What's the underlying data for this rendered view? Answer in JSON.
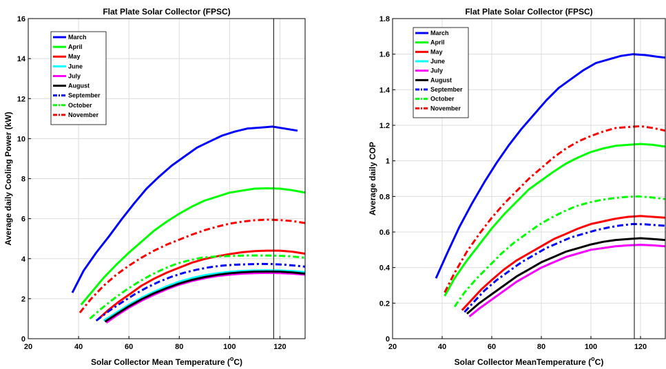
{
  "chart_data": [
    {
      "type": "line",
      "title": "Flat Plate Solar Collector (FPSC)",
      "xlabel": "Solar Collector Mean Temperature (",
      "xlabel_unit": "o",
      "xlabel_end": "C)",
      "ylabel": "Average daily Cooling Power (kW)",
      "xlim": [
        20,
        130
      ],
      "ylim": [
        0,
        16
      ],
      "xticks": [
        20,
        40,
        60,
        80,
        100,
        120
      ],
      "yticks": [
        0,
        2,
        4,
        6,
        8,
        10,
        12,
        14,
        16
      ],
      "grid": true,
      "vline_x": 117.5,
      "legend_position": "top-left",
      "series": [
        {
          "name": "March",
          "color": "#0000ff",
          "style": "solid",
          "x": [
            37.5,
            42,
            47,
            52,
            57,
            62,
            67,
            72,
            77,
            82,
            87,
            92,
            97,
            102,
            107,
            112,
            117,
            122,
            127
          ],
          "y": [
            2.3,
            3.4,
            4.3,
            5.1,
            5.95,
            6.75,
            7.5,
            8.1,
            8.65,
            9.1,
            9.55,
            9.85,
            10.15,
            10.35,
            10.5,
            10.55,
            10.6,
            10.5,
            10.4
          ]
        },
        {
          "name": "April",
          "color": "#00ff00",
          "style": "solid",
          "x": [
            41,
            45,
            50,
            55,
            60,
            65,
            70,
            75,
            80,
            85,
            90,
            95,
            100,
            105,
            110,
            115,
            120,
            125,
            130
          ],
          "y": [
            1.7,
            2.3,
            3.05,
            3.7,
            4.3,
            4.85,
            5.4,
            5.85,
            6.25,
            6.6,
            6.9,
            7.1,
            7.3,
            7.4,
            7.5,
            7.52,
            7.5,
            7.42,
            7.3
          ]
        },
        {
          "name": "May",
          "color": "#ff0000",
          "style": "solid",
          "x": [
            48,
            52,
            56,
            60,
            65,
            70,
            75,
            80,
            85,
            90,
            95,
            100,
            105,
            110,
            115,
            120,
            125,
            130
          ],
          "y": [
            1.0,
            1.45,
            1.85,
            2.2,
            2.65,
            3.0,
            3.3,
            3.55,
            3.8,
            3.98,
            4.12,
            4.23,
            4.32,
            4.38,
            4.4,
            4.4,
            4.35,
            4.25
          ]
        },
        {
          "name": "June",
          "color": "#00ffff",
          "style": "solid",
          "x": [
            50,
            55,
            60,
            65,
            70,
            75,
            80,
            85,
            90,
            95,
            100,
            105,
            110,
            115,
            120,
            125,
            130
          ],
          "y": [
            0.9,
            1.3,
            1.7,
            2.05,
            2.35,
            2.62,
            2.85,
            3.03,
            3.17,
            3.27,
            3.34,
            3.39,
            3.41,
            3.42,
            3.41,
            3.38,
            3.33
          ]
        },
        {
          "name": "July",
          "color": "#ff00ff",
          "style": "solid",
          "x": [
            51,
            55,
            60,
            65,
            70,
            75,
            80,
            85,
            90,
            95,
            100,
            105,
            110,
            115,
            120,
            125,
            130
          ],
          "y": [
            0.8,
            1.15,
            1.55,
            1.9,
            2.2,
            2.47,
            2.7,
            2.88,
            3.02,
            3.13,
            3.2,
            3.25,
            3.28,
            3.29,
            3.28,
            3.25,
            3.2
          ]
        },
        {
          "name": "August",
          "color": "#000000",
          "style": "solid",
          "x": [
            50.5,
            55,
            60,
            65,
            70,
            75,
            80,
            85,
            90,
            95,
            100,
            105,
            110,
            115,
            120,
            125,
            130
          ],
          "y": [
            0.85,
            1.22,
            1.62,
            1.97,
            2.27,
            2.53,
            2.76,
            2.94,
            3.08,
            3.19,
            3.27,
            3.32,
            3.35,
            3.36,
            3.35,
            3.31,
            3.25
          ]
        },
        {
          "name": "September",
          "color": "#0000ff",
          "style": "dashdot",
          "x": [
            47,
            52,
            57,
            62,
            67,
            72,
            77,
            82,
            87,
            92,
            97,
            102,
            107,
            112,
            117,
            122,
            127,
            130
          ],
          "y": [
            0.9,
            1.38,
            1.8,
            2.2,
            2.55,
            2.85,
            3.1,
            3.3,
            3.45,
            3.57,
            3.65,
            3.7,
            3.72,
            3.74,
            3.73,
            3.7,
            3.64,
            3.6
          ]
        },
        {
          "name": "October",
          "color": "#00ff00",
          "style": "dashdot",
          "x": [
            44.5,
            49,
            54,
            59,
            64,
            69,
            74,
            79,
            84,
            89,
            94,
            99,
            104,
            109,
            114,
            119,
            124,
            129,
            130
          ],
          "y": [
            1.0,
            1.5,
            2.0,
            2.45,
            2.85,
            3.2,
            3.5,
            3.75,
            3.92,
            4.05,
            4.1,
            4.13,
            4.15,
            4.16,
            4.16,
            4.15,
            4.12,
            4.06,
            4.05
          ]
        },
        {
          "name": "November",
          "color": "#ff0000",
          "style": "dashdot",
          "x": [
            40.5,
            45,
            50,
            55,
            60,
            65,
            70,
            75,
            80,
            85,
            90,
            95,
            100,
            105,
            110,
            115,
            120,
            125,
            130
          ],
          "y": [
            1.3,
            2.0,
            2.65,
            3.2,
            3.65,
            4.05,
            4.4,
            4.7,
            4.95,
            5.2,
            5.42,
            5.6,
            5.75,
            5.85,
            5.92,
            5.95,
            5.93,
            5.88,
            5.78
          ]
        }
      ]
    },
    {
      "type": "line",
      "title": "Flat Plate Solar Collector (FPSC)",
      "xlabel": "Solar Collector MeanTemperature (",
      "xlabel_unit": "o",
      "xlabel_end": "C)",
      "ylabel": "Average daily COP",
      "xlim": [
        20,
        130
      ],
      "ylim": [
        0,
        1.8
      ],
      "xticks": [
        20,
        40,
        60,
        80,
        100,
        120
      ],
      "yticks": [
        0,
        0.2,
        0.4,
        0.6,
        0.8,
        1,
        1.2,
        1.4,
        1.6,
        1.8
      ],
      "grid": true,
      "vline_x": 117.5,
      "legend_position": "top-left",
      "series": [
        {
          "name": "March",
          "color": "#0000ff",
          "style": "solid",
          "x": [
            37.5,
            42,
            47,
            52,
            57,
            62,
            67,
            72,
            77,
            82,
            87,
            92,
            97,
            102,
            107,
            112,
            117,
            122,
            127,
            130
          ],
          "y": [
            0.34,
            0.48,
            0.63,
            0.76,
            0.88,
            0.99,
            1.09,
            1.18,
            1.26,
            1.34,
            1.41,
            1.46,
            1.51,
            1.55,
            1.57,
            1.59,
            1.6,
            1.595,
            1.585,
            1.58
          ]
        },
        {
          "name": "April",
          "color": "#00ff00",
          "style": "solid",
          "x": [
            41,
            45,
            50,
            55,
            60,
            65,
            70,
            75,
            80,
            85,
            90,
            95,
            100,
            105,
            110,
            115,
            120,
            125,
            130
          ],
          "y": [
            0.24,
            0.34,
            0.44,
            0.53,
            0.62,
            0.7,
            0.77,
            0.84,
            0.89,
            0.94,
            0.985,
            1.02,
            1.05,
            1.07,
            1.085,
            1.09,
            1.095,
            1.09,
            1.08
          ]
        },
        {
          "name": "May",
          "color": "#ff0000",
          "style": "solid",
          "x": [
            48,
            52,
            56,
            60,
            65,
            70,
            75,
            80,
            85,
            90,
            95,
            100,
            105,
            110,
            115,
            120,
            125,
            130
          ],
          "y": [
            0.16,
            0.22,
            0.28,
            0.33,
            0.39,
            0.44,
            0.48,
            0.52,
            0.56,
            0.59,
            0.62,
            0.645,
            0.66,
            0.675,
            0.685,
            0.69,
            0.685,
            0.68
          ]
        },
        {
          "name": "June",
          "color": "#00ffff",
          "style": "solid",
          "x": [
            51,
            55,
            60,
            65,
            70,
            75,
            80,
            85,
            90,
            95,
            100,
            105,
            110,
            115,
            120,
            125,
            130
          ],
          "y": [
            0.125,
            0.17,
            0.22,
            0.27,
            0.32,
            0.36,
            0.4,
            0.43,
            0.46,
            0.48,
            0.5,
            0.51,
            0.52,
            0.525,
            0.528,
            0.525,
            0.52
          ]
        },
        {
          "name": "July",
          "color": "#ff00ff",
          "style": "solid",
          "x": [
            51,
            55,
            60,
            65,
            70,
            75,
            80,
            85,
            90,
            95,
            100,
            105,
            110,
            115,
            120,
            125,
            130
          ],
          "y": [
            0.125,
            0.17,
            0.22,
            0.27,
            0.32,
            0.36,
            0.4,
            0.43,
            0.46,
            0.48,
            0.5,
            0.51,
            0.52,
            0.525,
            0.528,
            0.525,
            0.52
          ]
        },
        {
          "name": "August",
          "color": "#000000",
          "style": "solid",
          "x": [
            50,
            55,
            60,
            65,
            70,
            75,
            80,
            85,
            90,
            95,
            100,
            105,
            110,
            115,
            120,
            125,
            130
          ],
          "y": [
            0.14,
            0.2,
            0.25,
            0.3,
            0.35,
            0.39,
            0.43,
            0.46,
            0.49,
            0.51,
            0.53,
            0.545,
            0.555,
            0.56,
            0.565,
            0.56,
            0.555
          ]
        },
        {
          "name": "September",
          "color": "#0000ff",
          "style": "dashdot",
          "x": [
            49,
            53,
            57,
            62,
            67,
            72,
            77,
            82,
            87,
            92,
            97,
            102,
            107,
            112,
            117,
            122,
            127,
            130
          ],
          "y": [
            0.15,
            0.21,
            0.27,
            0.33,
            0.38,
            0.43,
            0.47,
            0.51,
            0.54,
            0.57,
            0.59,
            0.61,
            0.625,
            0.637,
            0.645,
            0.643,
            0.638,
            0.635
          ]
        },
        {
          "name": "October",
          "color": "#00ff00",
          "style": "dashdot",
          "x": [
            45,
            49,
            54,
            59,
            64,
            69,
            74,
            79,
            84,
            89,
            94,
            99,
            104,
            109,
            114,
            119,
            124,
            129,
            130
          ],
          "y": [
            0.18,
            0.26,
            0.34,
            0.41,
            0.48,
            0.54,
            0.59,
            0.64,
            0.68,
            0.715,
            0.745,
            0.765,
            0.78,
            0.79,
            0.797,
            0.8,
            0.795,
            0.787,
            0.785
          ]
        },
        {
          "name": "November",
          "color": "#ff0000",
          "style": "dashdot",
          "x": [
            41,
            45,
            50,
            55,
            60,
            65,
            70,
            75,
            80,
            85,
            90,
            95,
            100,
            105,
            110,
            115,
            120,
            125,
            130
          ],
          "y": [
            0.26,
            0.37,
            0.49,
            0.59,
            0.68,
            0.76,
            0.83,
            0.9,
            0.96,
            1.02,
            1.07,
            1.11,
            1.14,
            1.165,
            1.185,
            1.19,
            1.195,
            1.185,
            1.17
          ]
        }
      ]
    }
  ]
}
